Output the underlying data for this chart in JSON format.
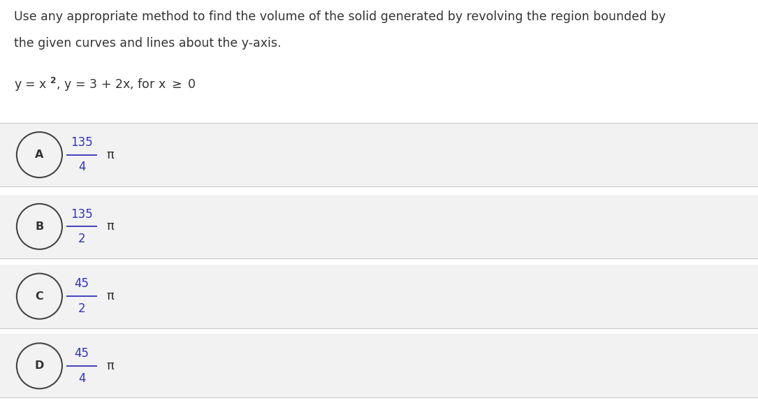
{
  "title_line1": "Use any appropriate method to find the volume of the solid generated by revolving the region bounded by",
  "title_line2": "the given curves and lines about the y-axis.",
  "options": [
    {
      "label": "A",
      "numerator": "135",
      "denominator": "4",
      "symbol": "π"
    },
    {
      "label": "B",
      "numerator": "135",
      "denominator": "2",
      "symbol": "π"
    },
    {
      "label": "C",
      "numerator": "45",
      "denominator": "2",
      "symbol": "π"
    },
    {
      "label": "D",
      "numerator": "45",
      "denominator": "4",
      "symbol": "π"
    }
  ],
  "bg_color": "#ffffff",
  "option_bg_color": "#f2f2f2",
  "text_color": "#333333",
  "circle_edge_color": "#444444",
  "label_color": "#333333",
  "fraction_color": "#3333bb",
  "separator_color": "#cccccc",
  "fig_width": 10.85,
  "fig_height": 5.87
}
